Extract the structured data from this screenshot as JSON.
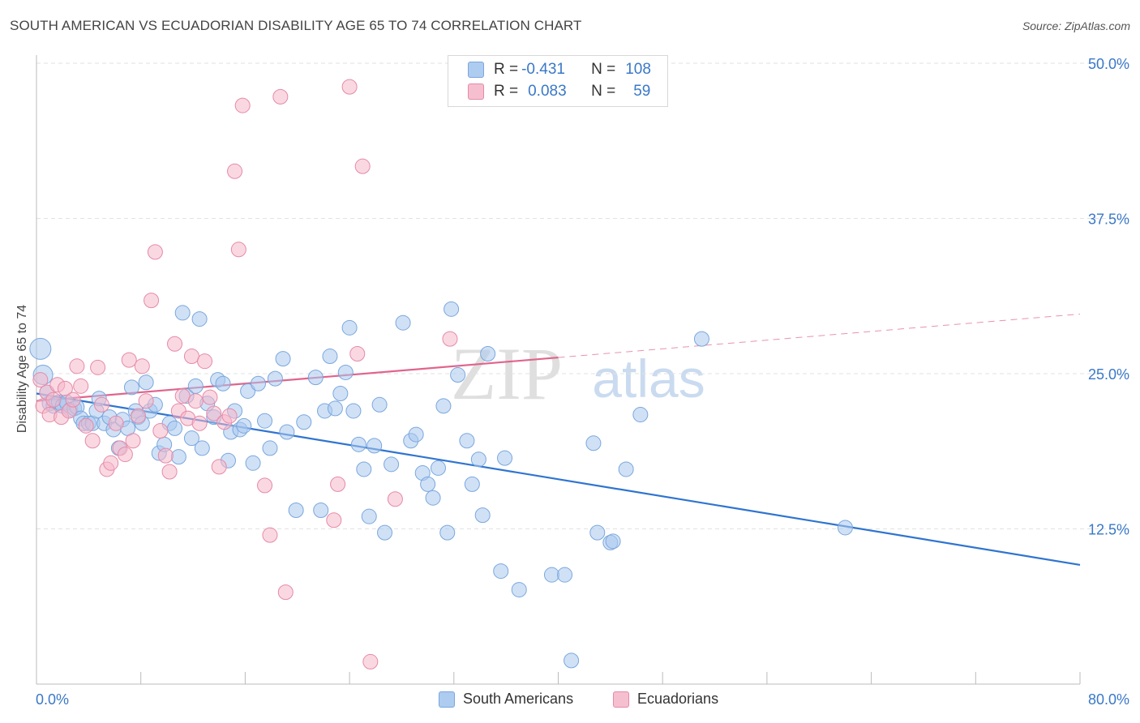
{
  "header": {
    "title": "SOUTH AMERICAN VS ECUADORIAN DISABILITY AGE 65 TO 74 CORRELATION CHART",
    "source": "Source: ZipAtlas.com"
  },
  "legend": {
    "r_label": "R =",
    "n_label": "N =",
    "rows": [
      {
        "r": "-0.431",
        "n": "108",
        "color": "#aecbf0"
      },
      {
        "r": "0.083",
        "n": "59",
        "color": "#f6bfd0"
      }
    ],
    "bottom": [
      "South Americans",
      "Ecuadorians"
    ]
  },
  "watermark": {
    "zip": "ZIP",
    "atlas": "atlas"
  },
  "chart_data": {
    "type": "scatter",
    "title": "SOUTH AMERICAN VS ECUADORIAN DISABILITY AGE 65 TO 74 CORRELATION CHART",
    "xlabel": "",
    "ylabel": "Disability Age 65 to 74",
    "xlim": [
      0,
      80
    ],
    "ylim": [
      0,
      50
    ],
    "x_tick_labels": [
      "0.0%",
      "80.0%"
    ],
    "y_ticks": [
      12.5,
      25.0,
      37.5,
      50.0
    ],
    "y_tick_labels": [
      "12.5%",
      "25.0%",
      "37.5%",
      "50.0%"
    ],
    "grid": "horizontal dashed",
    "legend_position": "top-center",
    "colors": {
      "blue_point": "#a9c8ee",
      "blue_line": "#2f74d0",
      "pink_point": "#f5b8cb",
      "pink_line": "#e0648c",
      "tick_label": "#3a78c8"
    },
    "series": [
      {
        "name": "South Americans",
        "color": "#a9c8ee",
        "trend": {
          "x": [
            0,
            80
          ],
          "y": [
            23.4,
            9.6
          ]
        },
        "points": [
          [
            0.3,
            27.0
          ],
          [
            0.5,
            24.9
          ],
          [
            0.8,
            23.5
          ],
          [
            1.0,
            22.6
          ],
          [
            1.3,
            22.4
          ],
          [
            1.7,
            22.7
          ],
          [
            2.0,
            22.4
          ],
          [
            2.3,
            22.7
          ],
          [
            2.6,
            22.1
          ],
          [
            2.9,
            22.2
          ],
          [
            3.1,
            22.3
          ],
          [
            3.4,
            21.4
          ],
          [
            3.6,
            21.0
          ],
          [
            4.0,
            21.0
          ],
          [
            4.3,
            21.0
          ],
          [
            4.6,
            22.0
          ],
          [
            4.8,
            23.0
          ],
          [
            5.2,
            21.0
          ],
          [
            5.6,
            21.5
          ],
          [
            5.9,
            20.5
          ],
          [
            6.3,
            19.0
          ],
          [
            6.6,
            21.3
          ],
          [
            7.0,
            20.6
          ],
          [
            7.3,
            23.9
          ],
          [
            7.6,
            22.0
          ],
          [
            7.8,
            21.5
          ],
          [
            8.1,
            21.0
          ],
          [
            8.4,
            24.3
          ],
          [
            8.7,
            22.0
          ],
          [
            9.1,
            22.5
          ],
          [
            9.4,
            18.6
          ],
          [
            9.8,
            19.3
          ],
          [
            10.2,
            21.0
          ],
          [
            10.6,
            20.6
          ],
          [
            10.9,
            18.3
          ],
          [
            11.2,
            29.9
          ],
          [
            11.5,
            23.2
          ],
          [
            11.9,
            19.8
          ],
          [
            12.2,
            24.0
          ],
          [
            12.5,
            29.4
          ],
          [
            12.7,
            19.0
          ],
          [
            13.1,
            22.6
          ],
          [
            13.6,
            21.5
          ],
          [
            13.9,
            24.5
          ],
          [
            14.3,
            24.2
          ],
          [
            14.7,
            18.0
          ],
          [
            14.9,
            20.3
          ],
          [
            15.2,
            22.0
          ],
          [
            15.6,
            20.5
          ],
          [
            15.9,
            20.8
          ],
          [
            16.2,
            23.6
          ],
          [
            16.6,
            17.8
          ],
          [
            17.0,
            24.2
          ],
          [
            17.5,
            21.2
          ],
          [
            17.9,
            19.0
          ],
          [
            18.3,
            24.6
          ],
          [
            18.9,
            26.2
          ],
          [
            19.2,
            20.3
          ],
          [
            19.9,
            14.0
          ],
          [
            20.5,
            21.1
          ],
          [
            21.4,
            24.7
          ],
          [
            21.8,
            14.0
          ],
          [
            22.1,
            22.0
          ],
          [
            22.5,
            26.4
          ],
          [
            22.9,
            22.2
          ],
          [
            23.3,
            23.4
          ],
          [
            23.7,
            25.1
          ],
          [
            24.0,
            28.7
          ],
          [
            24.3,
            22.0
          ],
          [
            24.7,
            19.3
          ],
          [
            25.1,
            17.3
          ],
          [
            25.5,
            13.5
          ],
          [
            25.9,
            19.2
          ],
          [
            26.3,
            22.5
          ],
          [
            26.7,
            12.2
          ],
          [
            27.2,
            17.7
          ],
          [
            28.1,
            29.1
          ],
          [
            28.7,
            19.6
          ],
          [
            29.1,
            20.1
          ],
          [
            29.6,
            17.0
          ],
          [
            30.0,
            16.1
          ],
          [
            30.4,
            15.0
          ],
          [
            30.8,
            17.4
          ],
          [
            31.2,
            22.4
          ],
          [
            31.5,
            12.2
          ],
          [
            31.8,
            30.2
          ],
          [
            32.3,
            24.9
          ],
          [
            33.0,
            19.6
          ],
          [
            33.4,
            16.1
          ],
          [
            33.9,
            18.1
          ],
          [
            34.2,
            13.6
          ],
          [
            34.6,
            26.6
          ],
          [
            35.6,
            9.1
          ],
          [
            35.9,
            18.2
          ],
          [
            37.0,
            7.6
          ],
          [
            39.5,
            8.8
          ],
          [
            40.5,
            8.8
          ],
          [
            41.0,
            1.9
          ],
          [
            42.7,
            19.4
          ],
          [
            43.0,
            12.2
          ],
          [
            44.0,
            11.4
          ],
          [
            44.2,
            11.5
          ],
          [
            45.2,
            17.3
          ],
          [
            46.3,
            21.7
          ],
          [
            51.0,
            27.8
          ],
          [
            62.0,
            12.6
          ]
        ]
      },
      {
        "name": "Ecuadorians",
        "color": "#f5b8cb",
        "trend": {
          "x": [
            0,
            80
          ],
          "y": [
            22.8,
            29.8
          ],
          "solid_until_x": 40
        },
        "points": [
          [
            0.3,
            24.5
          ],
          [
            0.5,
            22.4
          ],
          [
            0.8,
            23.5
          ],
          [
            1.0,
            21.7
          ],
          [
            1.3,
            22.9
          ],
          [
            1.6,
            24.1
          ],
          [
            1.9,
            21.5
          ],
          [
            2.2,
            23.8
          ],
          [
            2.5,
            22.0
          ],
          [
            2.8,
            22.9
          ],
          [
            3.1,
            25.6
          ],
          [
            3.4,
            24.0
          ],
          [
            3.8,
            20.8
          ],
          [
            4.3,
            19.6
          ],
          [
            4.7,
            25.5
          ],
          [
            5.0,
            22.5
          ],
          [
            5.4,
            17.3
          ],
          [
            5.7,
            17.8
          ],
          [
            6.1,
            21.0
          ],
          [
            6.4,
            19.0
          ],
          [
            6.8,
            18.5
          ],
          [
            7.1,
            26.1
          ],
          [
            7.4,
            19.6
          ],
          [
            7.8,
            21.6
          ],
          [
            8.1,
            25.6
          ],
          [
            8.4,
            22.8
          ],
          [
            8.8,
            30.9
          ],
          [
            9.1,
            34.8
          ],
          [
            9.5,
            20.4
          ],
          [
            9.9,
            18.4
          ],
          [
            10.2,
            17.1
          ],
          [
            10.6,
            27.4
          ],
          [
            10.9,
            22.0
          ],
          [
            11.2,
            23.2
          ],
          [
            11.6,
            21.4
          ],
          [
            11.9,
            26.4
          ],
          [
            12.2,
            22.8
          ],
          [
            12.5,
            21.0
          ],
          [
            12.9,
            26.0
          ],
          [
            13.3,
            23.1
          ],
          [
            13.6,
            21.8
          ],
          [
            14.0,
            17.5
          ],
          [
            14.4,
            21.1
          ],
          [
            14.8,
            21.6
          ],
          [
            15.2,
            41.3
          ],
          [
            15.5,
            35.0
          ],
          [
            15.8,
            46.6
          ],
          [
            17.5,
            16.0
          ],
          [
            17.9,
            12.0
          ],
          [
            18.7,
            47.3
          ],
          [
            19.1,
            7.4
          ],
          [
            22.8,
            13.2
          ],
          [
            23.1,
            16.1
          ],
          [
            24.0,
            48.1
          ],
          [
            24.6,
            26.6
          ],
          [
            25.0,
            41.7
          ],
          [
            25.6,
            1.8
          ],
          [
            27.5,
            14.9
          ],
          [
            31.7,
            27.8
          ]
        ]
      }
    ]
  }
}
